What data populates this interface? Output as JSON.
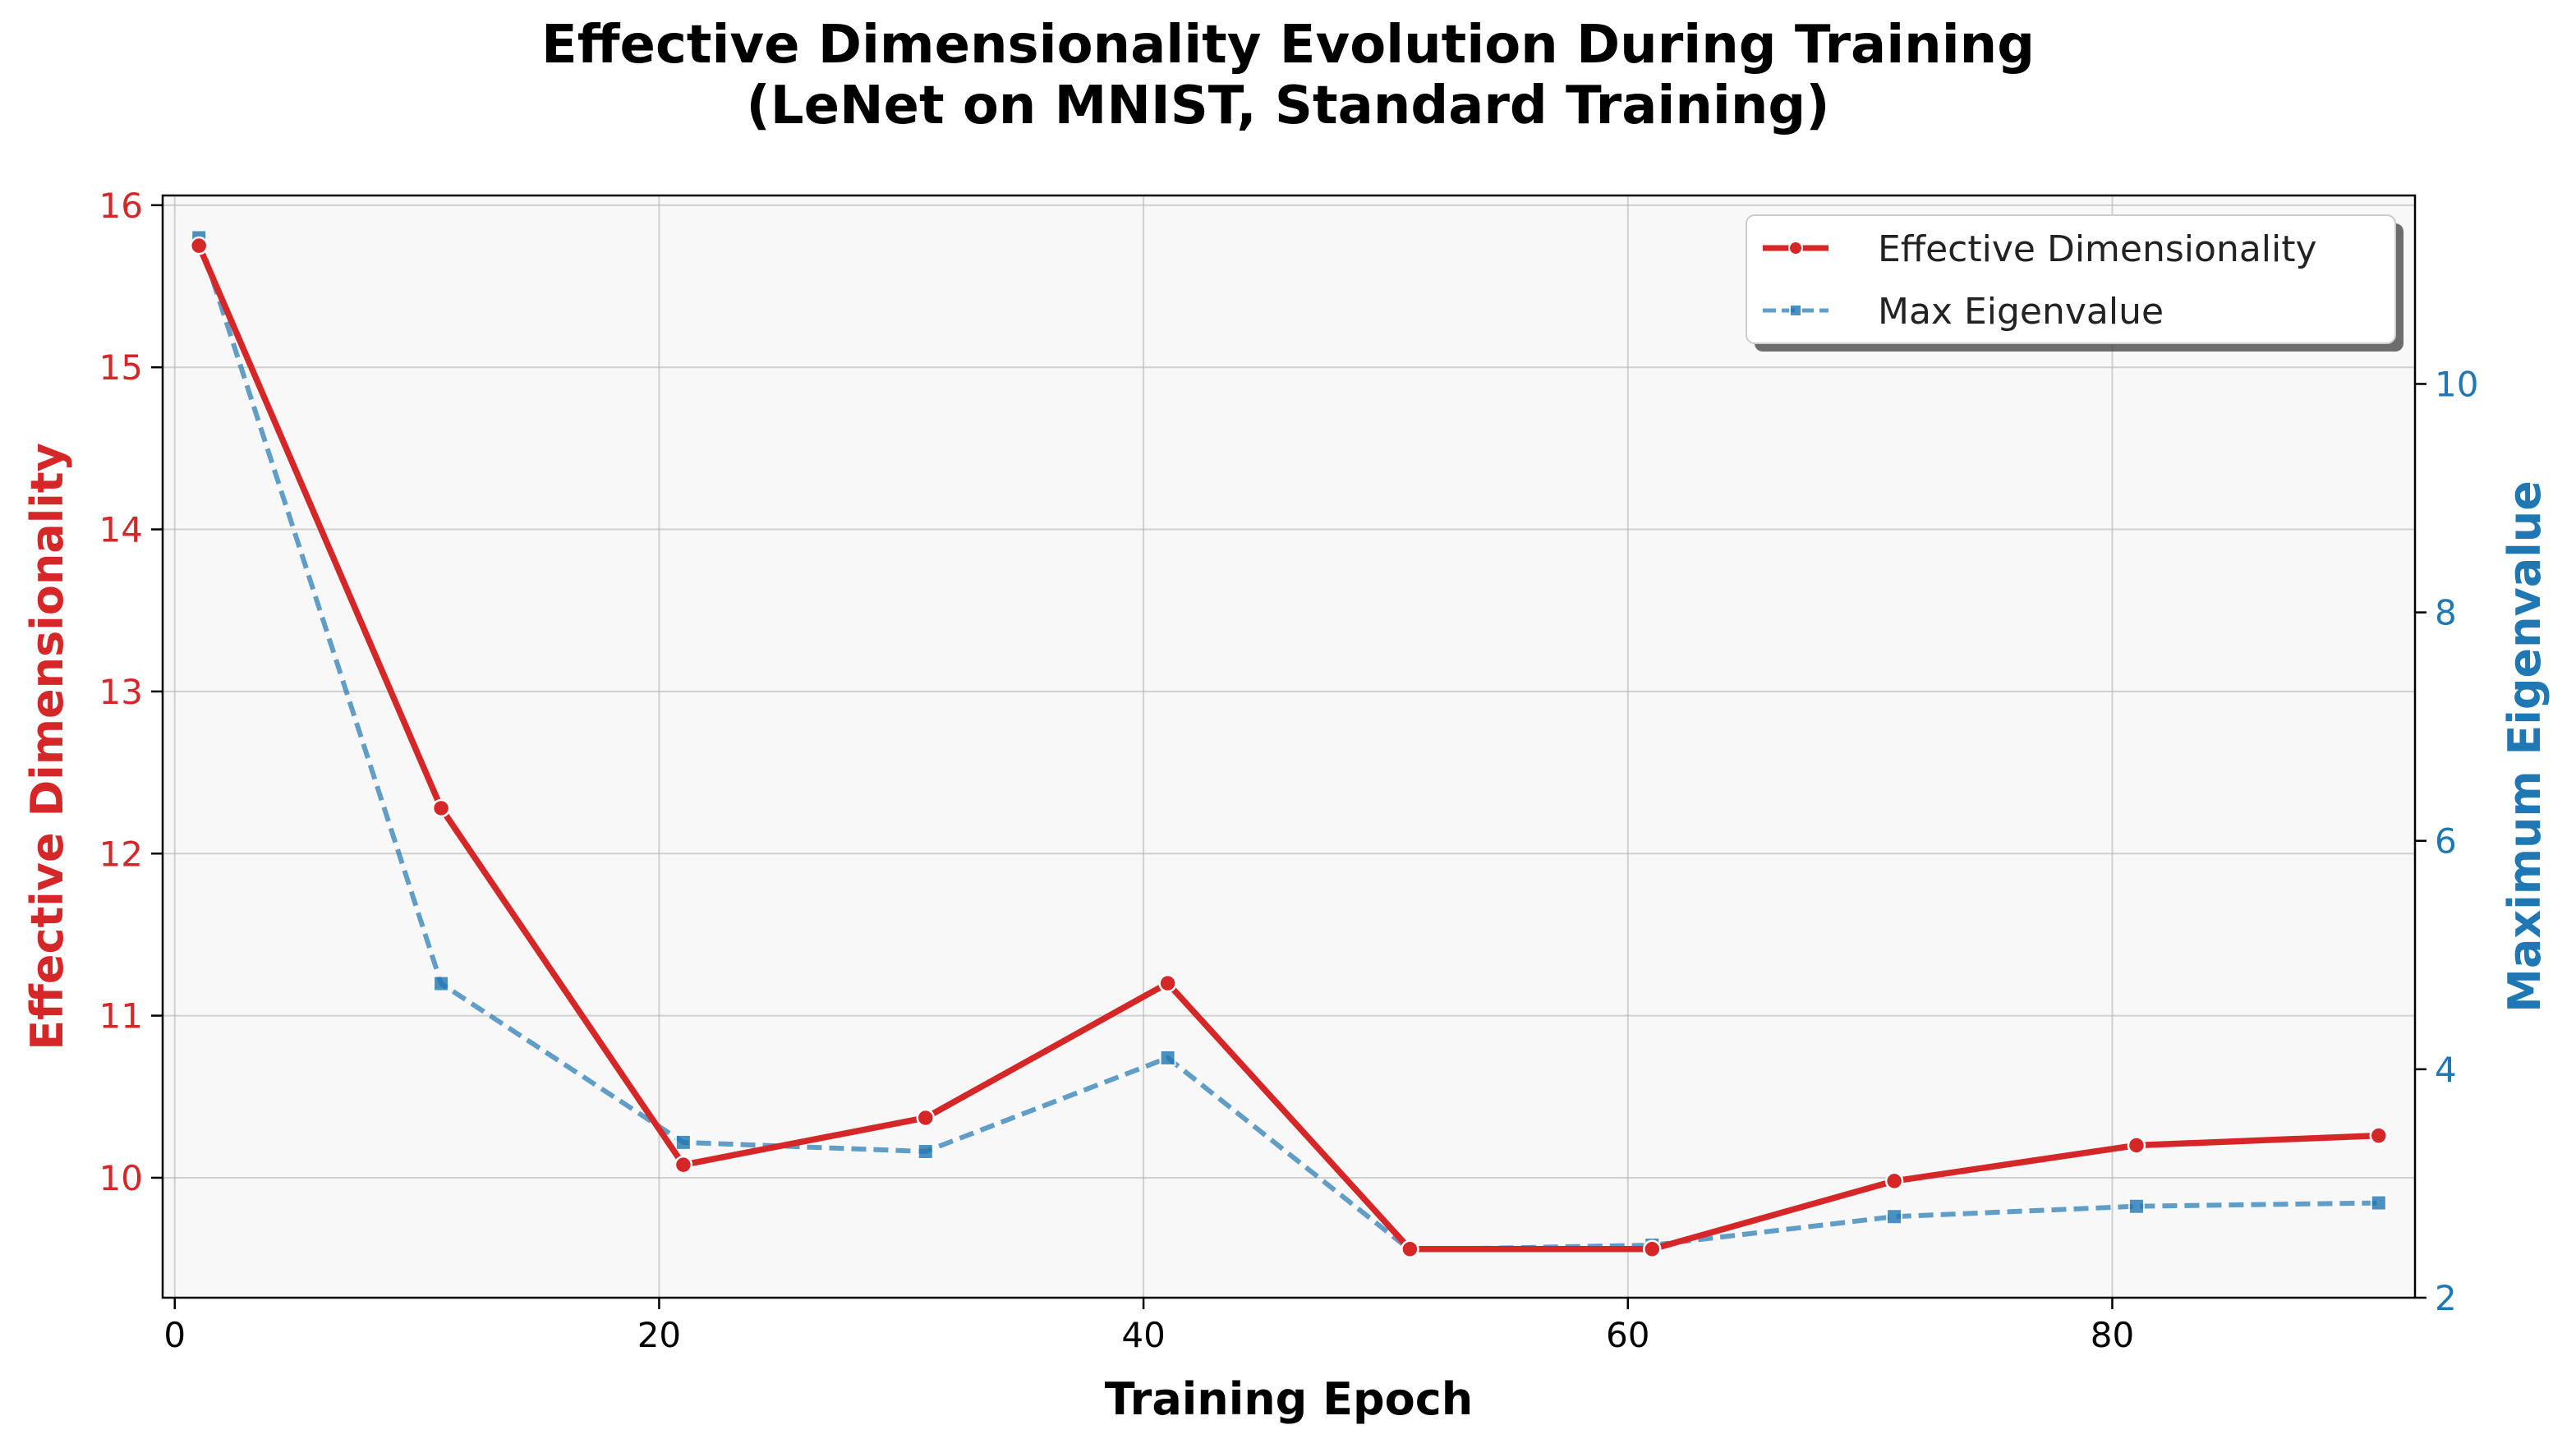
{
  "chart_data": {
    "type": "line",
    "title_line1": "Effective Dimensionality Evolution During Training",
    "title_line2": "(LeNet on MNIST, Standard Training)",
    "xlabel": "Training Epoch",
    "ylabel_left": "Effective Dimensionality",
    "ylabel_right": "Maximum Eigenvalue",
    "xlim": [
      -0.5,
      92.5
    ],
    "ylim_left": [
      9.26,
      16.06
    ],
    "ylim_right": [
      2.0,
      11.65
    ],
    "x_ticks": [
      0,
      20,
      40,
      60,
      80
    ],
    "y_left_ticks": [
      10,
      11,
      12,
      13,
      14,
      15,
      16
    ],
    "y_right_ticks": [
      2,
      4,
      6,
      8,
      10
    ],
    "grid": true,
    "legend_position": "upper right",
    "x": [
      1,
      11,
      21,
      31,
      41,
      51,
      61,
      71,
      81,
      91
    ],
    "series": [
      {
        "name": "Effective Dimensionality",
        "axis": "left",
        "values": [
          15.75,
          12.28,
          10.08,
          10.37,
          11.2,
          9.56,
          9.56,
          9.98,
          10.2,
          10.26
        ],
        "color": "#d62728",
        "style": "solid",
        "marker": "circle"
      },
      {
        "name": "Max Eigenvalue",
        "axis": "right",
        "values": [
          11.28,
          4.75,
          3.36,
          3.28,
          4.1,
          2.42,
          2.46,
          2.71,
          2.8,
          2.83
        ],
        "color": "#1f77b4",
        "style": "dashed",
        "marker": "square"
      }
    ]
  }
}
